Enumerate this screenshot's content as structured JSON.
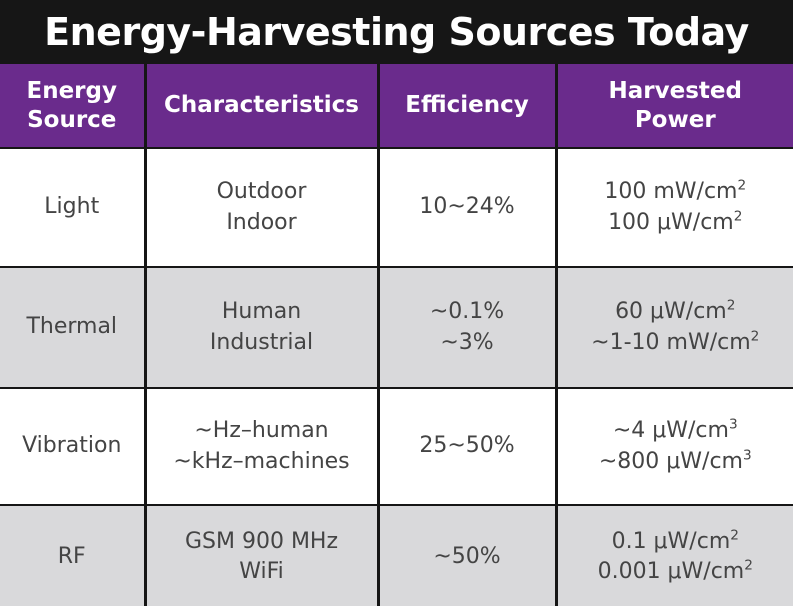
{
  "title": "Energy-Harvesting Sources Today",
  "table": {
    "headers": [
      [
        "Energy",
        "Source"
      ],
      [
        "Characteristics"
      ],
      [
        "Efficiency"
      ],
      [
        "Harvested",
        "Power"
      ]
    ],
    "rows": [
      {
        "source": "Light",
        "characteristics": [
          "Outdoor",
          "Indoor"
        ],
        "efficiency": [
          "10~24%"
        ],
        "power": [
          {
            "text": "100 mW/cm",
            "sup": "2"
          },
          {
            "text": "100 μW/cm",
            "sup": "2"
          }
        ]
      },
      {
        "source": "Thermal",
        "characteristics": [
          "Human",
          "Industrial"
        ],
        "efficiency": [
          "~0.1%",
          "~3%"
        ],
        "power": [
          {
            "text": "60 μW/cm",
            "sup": "2"
          },
          {
            "text": "~1-10 mW/cm",
            "sup": "2"
          }
        ]
      },
      {
        "source": "Vibration",
        "characteristics": [
          "~Hz–human",
          "~kHz–machines"
        ],
        "efficiency": [
          "25~50%"
        ],
        "power": [
          {
            "text": "~4 μW/cm",
            "sup": "3"
          },
          {
            "text": "~800 μW/cm",
            "sup": "3"
          }
        ]
      },
      {
        "source": "RF",
        "characteristics": [
          "GSM 900 MHz",
          "WiFi"
        ],
        "efficiency": [
          "~50%"
        ],
        "power": [
          {
            "text": "0.1 μW/cm",
            "sup": "2"
          },
          {
            "text": "0.001 μW/cm",
            "sup": "2"
          }
        ]
      }
    ]
  },
  "colors": {
    "header_bg": "#6a2b8c",
    "title_bg": "#161616",
    "row_alt_bg": "#d9d9db",
    "text": "#444444"
  }
}
